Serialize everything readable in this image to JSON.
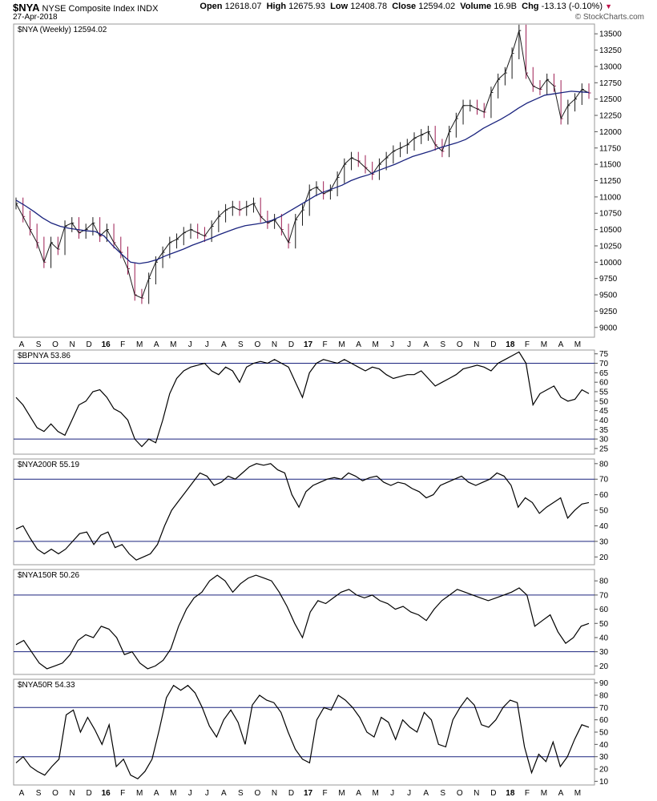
{
  "header": {
    "symbol": "$NYA",
    "name": "NYSE Composite Index",
    "exchange": "INDX",
    "date": "27-Apr-2018",
    "credit": "© StockCharts.com",
    "open_label": "Open",
    "open": "12618.07",
    "high_label": "High",
    "high": "12675.93",
    "low_label": "Low",
    "low": "12408.78",
    "close_label": "Close",
    "close": "12594.02",
    "volume_label": "Volume",
    "volume": "16.9B",
    "chg_label": "Chg",
    "chg": "-13.13 (-0.10%)"
  },
  "chart_data": [
    {
      "type": "line",
      "label": "$NYA (Weekly) 12594.02",
      "ylim": [
        8850,
        13650
      ],
      "yticks": [
        9000,
        9250,
        9500,
        9750,
        10000,
        10250,
        10500,
        10750,
        11000,
        11250,
        11500,
        11750,
        12000,
        12250,
        12500,
        12750,
        13000,
        13250,
        13500
      ],
      "series": [
        {
          "values": [
            10900,
            10700,
            10500,
            10300,
            10000,
            10300,
            10200,
            10550,
            10600,
            10450,
            10500,
            10600,
            10400,
            10500,
            10300,
            10150,
            9900,
            9500,
            9450,
            9750,
            10000,
            10150,
            10300,
            10350,
            10450,
            10500,
            10450,
            10400,
            10550,
            10700,
            10800,
            10850,
            10800,
            10850,
            10900,
            10700,
            10600,
            10650,
            10500,
            10300,
            10650,
            10800,
            11100,
            11150,
            11050,
            11100,
            11300,
            11500,
            11600,
            11550,
            11450,
            11350,
            11500,
            11600,
            11700,
            11750,
            11800,
            11900,
            11950,
            12000,
            11800,
            11700,
            12000,
            12200,
            12400,
            12400,
            12350,
            12300,
            12600,
            12800,
            12900,
            13200,
            13550,
            12900,
            12700,
            12650,
            12800,
            12700,
            12200,
            12400,
            12500,
            12650,
            12594
          ]
        },
        {
          "values": [
            10950,
            10870,
            10780,
            10680,
            10600,
            10550,
            10520,
            10500,
            10480,
            10470,
            10400,
            10250,
            10120,
            10000,
            9980,
            10000,
            10040,
            10100,
            10150,
            10200,
            10260,
            10310,
            10360,
            10420,
            10470,
            10520,
            10560,
            10580,
            10600,
            10640,
            10700,
            10780,
            10860,
            10940,
            11020,
            11080,
            11130,
            11180,
            11250,
            11300,
            11340,
            11400,
            11450,
            11500,
            11560,
            11620,
            11660,
            11700,
            11750,
            11790,
            11830,
            11880,
            11960,
            12050,
            12120,
            12190,
            12270,
            12360,
            12440,
            12500,
            12560,
            12580,
            12600,
            12620,
            12610,
            12600
          ]
        }
      ]
    },
    {
      "type": "line",
      "label": "$BPNYA 53.86",
      "ylim": [
        22,
        77
      ],
      "yticks": [
        25,
        30,
        35,
        40,
        45,
        50,
        55,
        60,
        65,
        70,
        75
      ],
      "reference_lines": [
        30,
        70
      ],
      "series": [
        {
          "values": [
            52,
            48,
            42,
            36,
            34,
            38,
            34,
            32,
            40,
            48,
            50,
            55,
            56,
            52,
            46,
            44,
            40,
            30,
            26,
            30,
            28,
            40,
            54,
            62,
            66,
            68,
            69,
            70,
            66,
            64,
            68,
            66,
            60,
            68,
            70,
            71,
            70,
            72,
            70,
            68,
            60,
            52,
            65,
            70,
            72,
            71,
            70,
            72,
            70,
            68,
            66,
            68,
            67,
            64,
            62,
            63,
            64,
            64,
            66,
            62,
            58,
            60,
            62,
            64,
            67,
            68,
            69,
            68,
            66,
            70,
            72,
            74,
            76,
            70,
            48,
            54,
            56,
            58,
            52,
            50,
            51,
            56,
            54
          ]
        }
      ]
    },
    {
      "type": "line",
      "label": "$NYA200R 55.19",
      "ylim": [
        15,
        83
      ],
      "yticks": [
        20,
        30,
        40,
        50,
        60,
        70,
        80
      ],
      "reference_lines": [
        30,
        70
      ],
      "series": [
        {
          "values": [
            38,
            40,
            32,
            25,
            22,
            25,
            22,
            25,
            30,
            35,
            36,
            28,
            34,
            36,
            26,
            28,
            22,
            18,
            20,
            22,
            28,
            40,
            50,
            56,
            62,
            68,
            74,
            72,
            66,
            68,
            72,
            70,
            74,
            78,
            80,
            79,
            80,
            76,
            74,
            60,
            52,
            62,
            66,
            68,
            70,
            71,
            70,
            74,
            72,
            69,
            71,
            72,
            68,
            66,
            68,
            67,
            64,
            62,
            58,
            60,
            66,
            68,
            70,
            72,
            68,
            66,
            68,
            70,
            74,
            72,
            66,
            52,
            58,
            55,
            48,
            52,
            55,
            58,
            45,
            50,
            54,
            55
          ]
        }
      ]
    },
    {
      "type": "line",
      "label": "$NYA150R 50.26",
      "ylim": [
        14,
        88
      ],
      "yticks": [
        20,
        30,
        40,
        50,
        60,
        70,
        80
      ],
      "reference_lines": [
        30,
        70
      ],
      "series": [
        {
          "values": [
            35,
            38,
            30,
            22,
            18,
            20,
            22,
            28,
            38,
            42,
            40,
            48,
            46,
            40,
            28,
            30,
            22,
            18,
            20,
            24,
            32,
            48,
            60,
            68,
            72,
            80,
            84,
            80,
            72,
            78,
            82,
            84,
            82,
            80,
            72,
            62,
            50,
            40,
            58,
            66,
            64,
            68,
            72,
            74,
            70,
            68,
            70,
            66,
            64,
            60,
            62,
            58,
            56,
            52,
            60,
            66,
            70,
            74,
            72,
            70,
            68,
            66,
            68,
            70,
            72,
            75,
            70,
            48,
            52,
            56,
            44,
            36,
            40,
            48,
            50
          ]
        }
      ]
    },
    {
      "type": "line",
      "label": "$NYA50R 54.33",
      "ylim": [
        7,
        93
      ],
      "yticks": [
        10,
        20,
        30,
        40,
        50,
        60,
        70,
        80,
        90
      ],
      "reference_lines": [
        30,
        70
      ],
      "series": [
        {
          "values": [
            25,
            30,
            22,
            18,
            15,
            22,
            28,
            64,
            68,
            50,
            62,
            52,
            40,
            56,
            22,
            28,
            15,
            12,
            18,
            28,
            52,
            78,
            88,
            84,
            88,
            82,
            70,
            55,
            46,
            60,
            68,
            58,
            40,
            72,
            80,
            76,
            74,
            66,
            50,
            36,
            28,
            25,
            60,
            70,
            68,
            80,
            76,
            70,
            62,
            50,
            46,
            62,
            58,
            44,
            60,
            54,
            50,
            66,
            60,
            40,
            38,
            60,
            70,
            78,
            72,
            56,
            54,
            60,
            70,
            76,
            74,
            38,
            17,
            32,
            26,
            42,
            22,
            30,
            44,
            56,
            54
          ]
        }
      ]
    }
  ],
  "xaxis": {
    "top_labels": [
      "A",
      "S",
      "O",
      "N",
      "D",
      "16",
      "F",
      "M",
      "A",
      "M",
      "J",
      "J",
      "A",
      "S",
      "O",
      "N",
      "D",
      "17",
      "F",
      "M",
      "A",
      "M",
      "J",
      "J",
      "A",
      "S",
      "O",
      "N",
      "D",
      "18",
      "F",
      "M",
      "A",
      "M"
    ],
    "bottom_labels": [
      "A",
      "S",
      "O",
      "N",
      "D",
      "16",
      "F",
      "M",
      "A",
      "M",
      "J",
      "J",
      "A",
      "S",
      "O",
      "N",
      "D",
      "17",
      "F",
      "M",
      "A",
      "M",
      "J",
      "J",
      "A",
      "S",
      "O",
      "N",
      "D",
      "18",
      "F",
      "M",
      "A",
      "M"
    ]
  },
  "colors": {
    "price": "#1a1a1a",
    "ma": "#1a237e",
    "down_bar": "#9c1c52",
    "ref_line": "#1a237e",
    "line": "#000000",
    "grid_border": "#9a9a9a"
  }
}
